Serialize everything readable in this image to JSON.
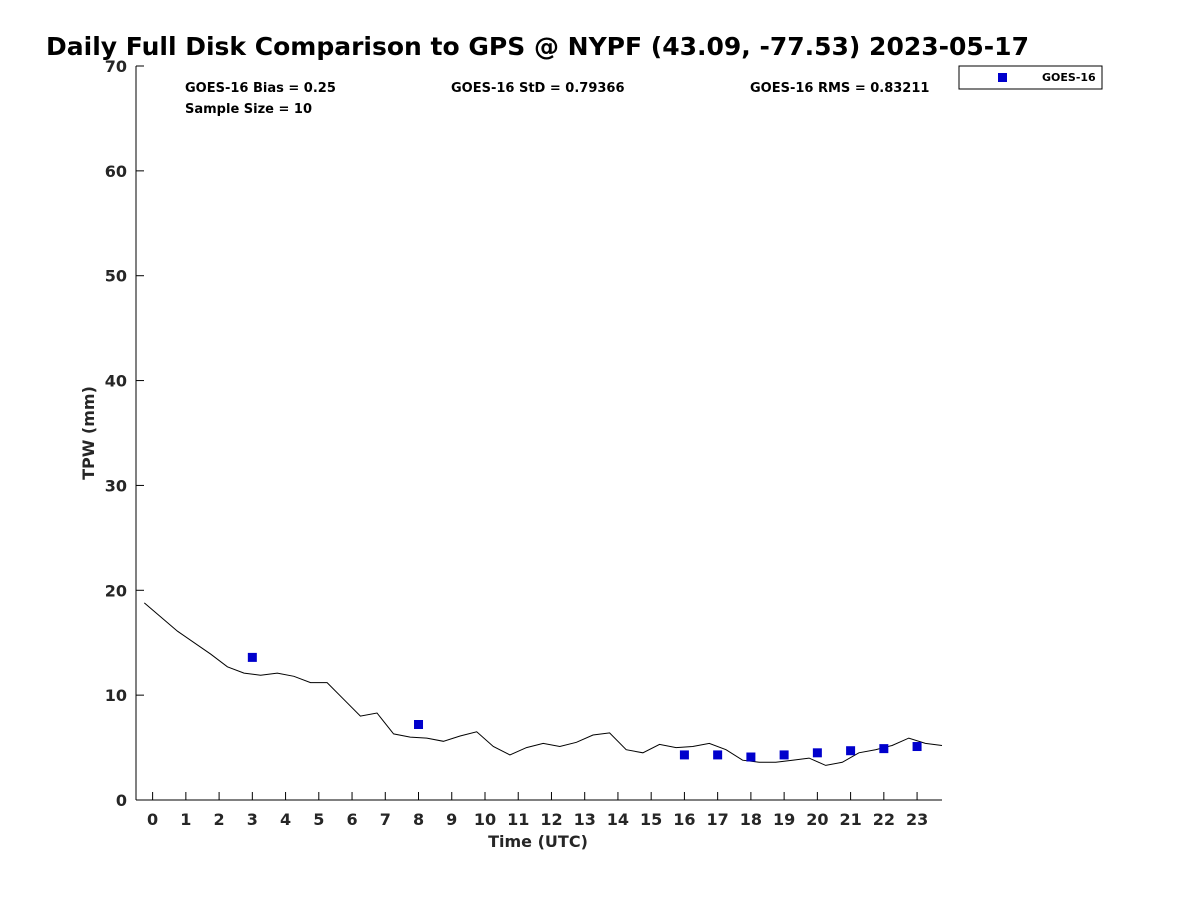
{
  "chart_data": {
    "type": "scatter",
    "title": "Daily Full Disk Comparison to GPS @ NYPF (43.09, -77.53) 2023-05-17",
    "xlabel": "Time (UTC)",
    "ylabel": "TPW (mm)",
    "xlim": [
      -0.5,
      23.75
    ],
    "ylim": [
      0,
      70
    ],
    "xticks": [
      0,
      1,
      2,
      3,
      4,
      5,
      6,
      7,
      8,
      9,
      10,
      11,
      12,
      13,
      14,
      15,
      16,
      17,
      18,
      19,
      20,
      21,
      22,
      23
    ],
    "xtick_labels": [
      "0",
      "1",
      "2",
      "3",
      "4",
      "5",
      "6",
      "7",
      "8",
      "9",
      "10",
      "11",
      "12",
      "13",
      "14",
      "15",
      "16",
      "17",
      "18",
      "19",
      "20",
      "21",
      "22",
      "23"
    ],
    "yticks": [
      0,
      10,
      20,
      30,
      40,
      50,
      60,
      70
    ],
    "ytick_labels": [
      "0",
      "10",
      "20",
      "30",
      "40",
      "50",
      "60",
      "70"
    ],
    "grid": false,
    "legend_position": "top-right (outside axes)",
    "stats": {
      "bias": "GOES-16 Bias = 0.25",
      "std": "GOES-16 StD = 0.79366",
      "rms": "GOES-16 RMS = 0.83211",
      "sample": "Sample Size = 10"
    },
    "series": [
      {
        "name": "GOES-16",
        "kind": "scatter",
        "marker": "square",
        "color": "#0000cc",
        "x": [
          3,
          8,
          16,
          17,
          18,
          19,
          20,
          21,
          22,
          23
        ],
        "y": [
          13.6,
          7.2,
          4.3,
          4.3,
          4.1,
          4.3,
          4.5,
          4.7,
          4.9,
          5.1
        ]
      },
      {
        "kind": "line",
        "color": "#000000",
        "x": [
          -0.25,
          0.75,
          1.75,
          2.25,
          2.75,
          3.25,
          3.75,
          4.25,
          4.75,
          5.25,
          5.75,
          6.25,
          6.75,
          7.25,
          7.75,
          8.25,
          8.75,
          9.25,
          9.75,
          10.25,
          10.75,
          11.25,
          11.75,
          12.25,
          12.75,
          13.25,
          13.75,
          14.25,
          14.75,
          15.25,
          15.75,
          16.25,
          16.75,
          17.25,
          17.75,
          18.25,
          18.75,
          19.25,
          19.75,
          20.25,
          20.75,
          21.25,
          21.75,
          22.25,
          22.75,
          23.25,
          23.75
        ],
        "y": [
          18.8,
          16.1,
          13.9,
          12.7,
          12.1,
          11.9,
          12.1,
          11.8,
          11.2,
          11.2,
          9.6,
          8.0,
          8.3,
          6.3,
          6.0,
          5.9,
          5.6,
          6.1,
          6.5,
          5.1,
          4.3,
          5.0,
          5.4,
          5.1,
          5.5,
          6.2,
          6.4,
          4.8,
          4.5,
          5.3,
          5.0,
          5.1,
          5.4,
          4.8,
          3.8,
          3.6,
          3.6,
          3.8,
          4.0,
          3.3,
          3.6,
          4.5,
          4.8,
          5.2,
          5.9,
          5.4,
          5.2
        ]
      }
    ]
  }
}
